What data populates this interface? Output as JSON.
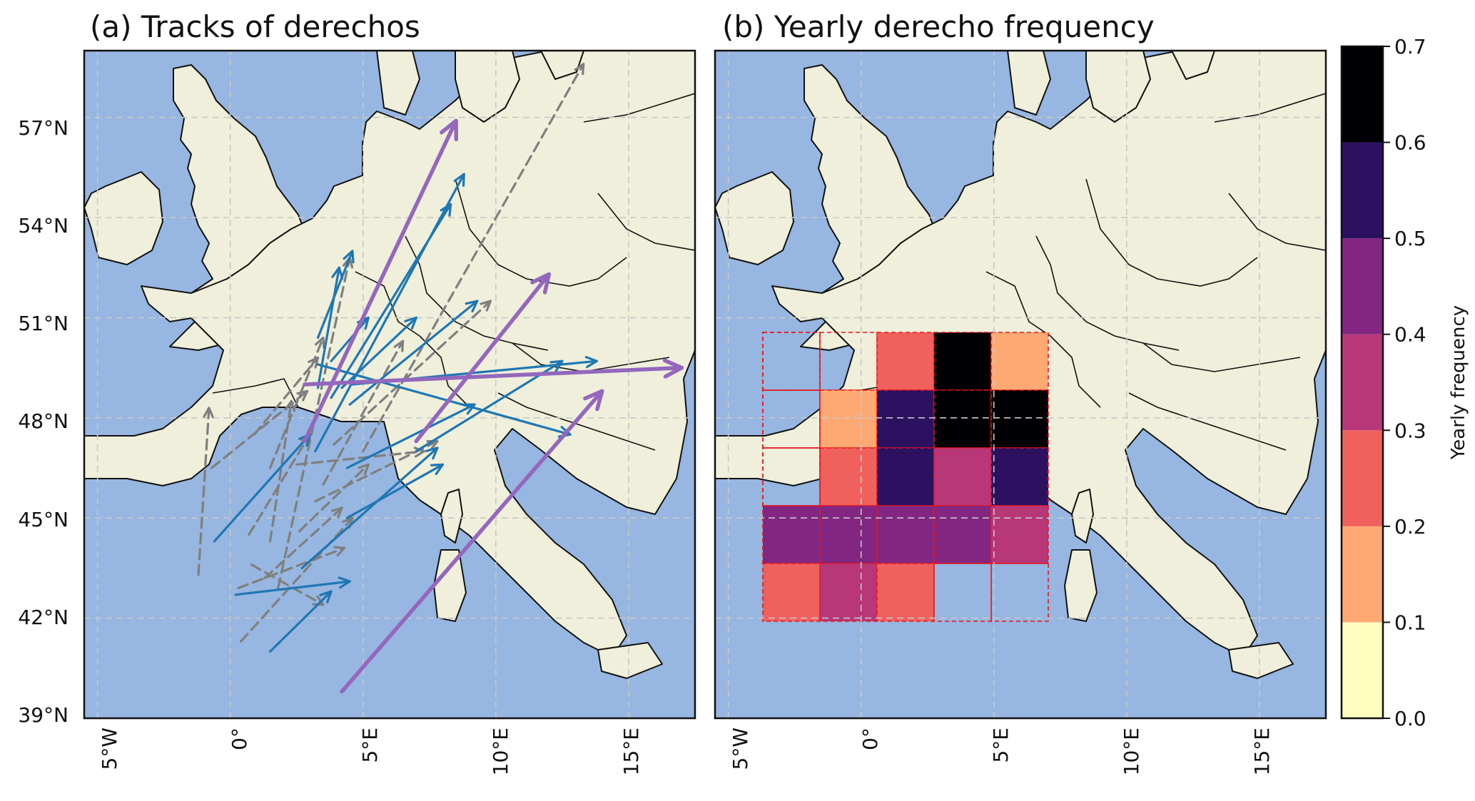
{
  "panels": {
    "a": {
      "title": "(a) Tracks of derechos"
    },
    "b": {
      "title": "(b) Yearly derecho frequency"
    }
  },
  "lat_ticks": [
    "39°N",
    "42°N",
    "45°N",
    "48°N",
    "51°N",
    "54°N",
    "57°N"
  ],
  "lon_ticks": [
    "5°W",
    "0°",
    "5°E",
    "10°E",
    "15°E"
  ],
  "colors": {
    "ocean": "#97b6e1",
    "land": "#efefdb",
    "track_blue": "#1f77b4",
    "track_gray": "#7f7f7f",
    "track_purple": "#9467bd",
    "grid_cell_outline": "#e8151b"
  },
  "chart_data": [
    {
      "type": "map-tracks",
      "panel": "a",
      "title": "(a) Tracks of derechos",
      "lon_range": [
        -5.5,
        17.5
      ],
      "lat_range": [
        39,
        59
      ],
      "tracks": {
        "purple": [
          [
            [
              2.8,
              47.3
            ],
            [
              8.5,
              56.9
            ]
          ],
          [
            [
              2.8,
              49.0
            ],
            [
              17.0,
              49.5
            ]
          ],
          [
            [
              7.0,
              47.3
            ],
            [
              12.0,
              52.3
            ]
          ],
          [
            [
              4.2,
              39.8
            ],
            [
              14.0,
              48.8
            ]
          ]
        ],
        "blue": [
          [
            [
              -0.6,
              44.3
            ],
            [
              3.0,
              47.5
            ]
          ],
          [
            [
              0.2,
              42.7
            ],
            [
              4.5,
              43.1
            ]
          ],
          [
            [
              1.5,
              41.0
            ],
            [
              3.8,
              42.8
            ]
          ],
          [
            [
              3.2,
              47.0
            ],
            [
              8.8,
              55.3
            ]
          ],
          [
            [
              3.8,
              48.6
            ],
            [
              8.3,
              54.4
            ]
          ],
          [
            [
              3.3,
              48.9
            ],
            [
              4.1,
              52.5
            ]
          ],
          [
            [
              3.3,
              50.4
            ],
            [
              4.6,
              53.0
            ]
          ],
          [
            [
              3.8,
              49.7
            ],
            [
              5.2,
              51.0
            ]
          ],
          [
            [
              4.2,
              48.9
            ],
            [
              7.0,
              51.0
            ]
          ],
          [
            [
              4.5,
              48.4
            ],
            [
              9.3,
              51.5
            ]
          ],
          [
            [
              4.6,
              49.0
            ],
            [
              13.8,
              49.7
            ]
          ],
          [
            [
              3.3,
              49.6
            ],
            [
              12.8,
              47.5
            ]
          ],
          [
            [
              4.4,
              46.5
            ],
            [
              9.2,
              48.4
            ]
          ],
          [
            [
              4.4,
              45.0
            ],
            [
              8.0,
              46.6
            ]
          ],
          [
            [
              2.7,
              43.5
            ],
            [
              7.8,
              47.1
            ]
          ],
          [
            [
              7.0,
              47.0
            ],
            [
              12.5,
              49.7
            ]
          ]
        ],
        "gray": [
          [
            [
              -1.2,
              43.3
            ],
            [
              -0.8,
              48.3
            ]
          ],
          [
            [
              0.4,
              41.3
            ],
            [
              4.6,
              45.0
            ]
          ],
          [
            [
              0.3,
              42.9
            ],
            [
              4.3,
              44.1
            ]
          ],
          [
            [
              0.7,
              44.5
            ],
            [
              3.0,
              47.5
            ]
          ],
          [
            [
              0.8,
              43.6
            ],
            [
              3.5,
              42.4
            ]
          ],
          [
            [
              1.3,
              43.2
            ],
            [
              4.2,
              45.3
            ]
          ],
          [
            [
              1.5,
              44.3
            ],
            [
              2.3,
              48.5
            ]
          ],
          [
            [
              1.8,
              42.9
            ],
            [
              4.5,
              52.8
            ]
          ],
          [
            [
              0.9,
              47.5
            ],
            [
              3.3,
              49.8
            ]
          ],
          [
            [
              1.5,
              46.5
            ],
            [
              3.5,
              50.4
            ]
          ],
          [
            [
              2.5,
              46.6
            ],
            [
              7.3,
              47.0
            ]
          ],
          [
            [
              2.6,
              44.6
            ],
            [
              5.2,
              46.6
            ]
          ],
          [
            [
              3.2,
              45.5
            ],
            [
              7.8,
              47.3
            ]
          ],
          [
            [
              3.5,
              46.0
            ],
            [
              6.5,
              50.3
            ]
          ],
          [
            [
              3.9,
              47.2
            ],
            [
              9.8,
              51.5
            ]
          ],
          [
            [
              5.0,
              47.0
            ],
            [
              13.3,
              58.6
            ]
          ],
          [
            [
              -0.7,
              46.5
            ],
            [
              2.9,
              48.8
            ]
          ]
        ]
      }
    },
    {
      "type": "heatmap",
      "panel": "b",
      "title": "(b) Yearly derecho frequency",
      "lon_range": [
        -5.5,
        17.5
      ],
      "lat_range": [
        39,
        59
      ],
      "colorbar": {
        "label": "Yearly frequency",
        "ticks": [
          "0.0",
          "0.1",
          "0.2",
          "0.3",
          "0.4",
          "0.5",
          "0.6",
          "0.7"
        ],
        "colors": [
          "#fcfdbf",
          "#fea973",
          "#f0605d",
          "#b73779",
          "#822681",
          "#2c1161",
          "#000004"
        ]
      },
      "cells_note": "rows from north to south, columns from west to east; value = yearly frequency class lower bound",
      "cells": [
        [
          null,
          null,
          0.2,
          0.6,
          0.1
        ],
        [
          null,
          0.1,
          0.5,
          0.6,
          0.6
        ],
        [
          null,
          0.2,
          0.5,
          0.3,
          0.5
        ],
        [
          0.4,
          0.4,
          0.4,
          0.4,
          0.3
        ],
        [
          0.2,
          0.3,
          0.2,
          null,
          null
        ]
      ]
    }
  ]
}
